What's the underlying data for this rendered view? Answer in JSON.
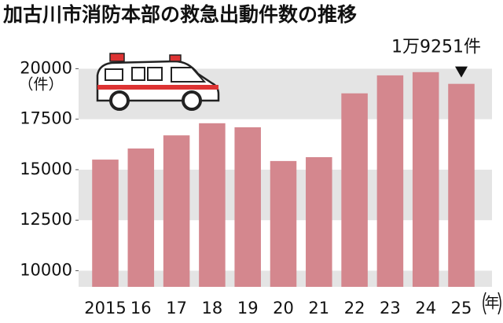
{
  "chart_data": {
    "type": "bar",
    "title": "加古川市消防本部の救急出動件数の推移",
    "y_unit": "（件）",
    "x_unit": "年",
    "categories": [
      "2015",
      "16",
      "17",
      "18",
      "19",
      "20",
      "21",
      "22",
      "23",
      "24",
      "25"
    ],
    "values": [
      15500,
      16050,
      16700,
      17300,
      17100,
      15430,
      15620,
      18780,
      19670,
      19830,
      19251
    ],
    "value_labels": [
      null,
      null,
      null,
      null,
      null,
      null,
      null,
      null,
      null,
      null,
      "1万9251件"
    ],
    "color": "#d4878e",
    "band_color": "#e4e4e4",
    "ylim": [
      9200,
      20600
    ],
    "yticks": [
      10000,
      12500,
      15000,
      17500,
      20000
    ],
    "grid": true
  }
}
